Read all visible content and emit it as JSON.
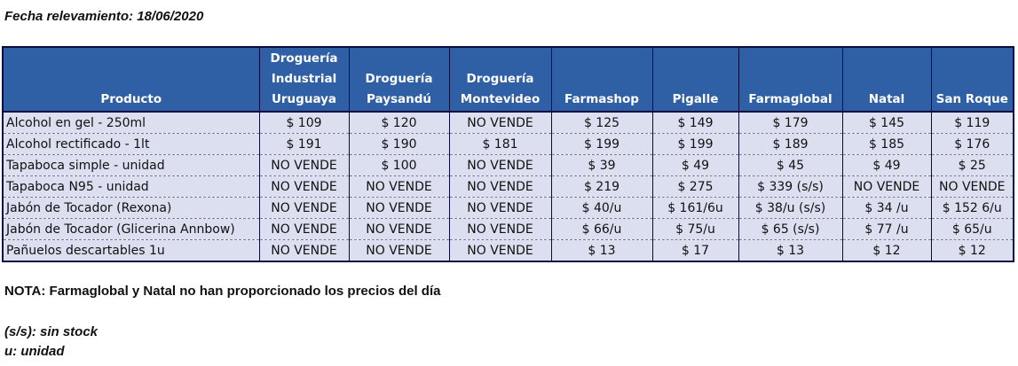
{
  "fecha": "Fecha relevamiento: 18/06/2020",
  "headers": [
    [
      "Producto"
    ],
    [
      "Droguería",
      "Industrial",
      "Uruguaya"
    ],
    [
      "Droguería",
      "Paysandú"
    ],
    [
      "Droguería",
      "Montevideo"
    ],
    [
      "Farmashop"
    ],
    [
      "Pigalle"
    ],
    [
      "Farmaglobal"
    ],
    [
      "Natal"
    ],
    [
      "San Roque"
    ]
  ],
  "rows": [
    [
      "Alcohol en gel  - 250ml",
      "$ 109",
      "$ 120",
      "NO VENDE",
      "$ 125",
      "$ 149",
      "$ 179",
      "$ 145",
      "$ 119"
    ],
    [
      "Alcohol rectificado - 1lt",
      "$ 191",
      "$ 190",
      "$ 181",
      "$ 199",
      "$ 199",
      "$ 189",
      "$ 185",
      "$ 176"
    ],
    [
      "Tapaboca simple - unidad",
      "NO VENDE",
      "$ 100",
      "NO VENDE",
      "$ 39",
      "$ 49",
      "$ 45",
      "$ 49",
      "$ 25"
    ],
    [
      "Tapaboca N95 - unidad",
      "NO VENDE",
      "NO VENDE",
      "NO VENDE",
      "$ 219",
      "$ 275",
      "$ 339 (s/s)",
      "NO VENDE",
      "NO VENDE"
    ],
    [
      "Jabón de Tocador (Rexona)",
      "NO VENDE",
      "NO VENDE",
      "NO VENDE",
      "$ 40/u",
      "$ 161/6u",
      "$ 38/u (s/s)",
      "$ 34 /u",
      "$ 152 6/u"
    ],
    [
      "Jabón de Tocador (Glicerina Annbow)",
      "NO VENDE",
      "NO VENDE",
      "NO VENDE",
      "$ 66/u",
      "$ 75/u",
      "$ 65 (s/s)",
      "$ 77 /u",
      "$ 65/u"
    ],
    [
      "Pañuelos descartables 1u",
      "NO VENDE",
      "NO VENDE",
      "NO VENDE",
      "$ 13",
      "$ 17",
      "$ 13",
      "$ 12",
      "$ 12"
    ]
  ],
  "nota": "NOTA: Farmaglobal y Natal no han proporcionado los precios del día",
  "leyenda": [
    "(s/s): sin stock",
    "u: unidad"
  ],
  "colors": {
    "header_bg": "#2f5fa5",
    "header_text": "#ffffff",
    "row_bg": "#dcdff0",
    "border": "#0a0a40"
  }
}
